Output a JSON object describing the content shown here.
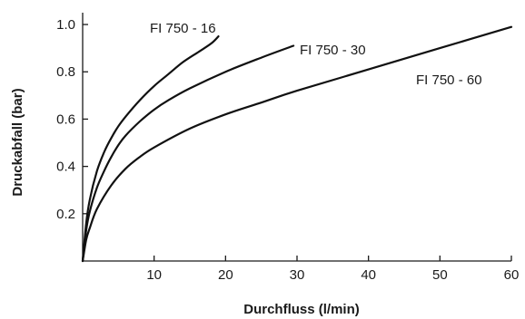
{
  "chart_data": {
    "type": "line",
    "title": "",
    "xlabel": "Durchfluss (l/min)",
    "ylabel": "Druckabfall (bar)",
    "xlim": [
      0,
      60
    ],
    "ylim": [
      0,
      1.05
    ],
    "xticks": [
      10,
      20,
      30,
      40,
      50,
      60
    ],
    "yticks": [
      0.2,
      0.4,
      0.6,
      0.8,
      1.0
    ],
    "xtick_labels": [
      "10",
      "20",
      "30",
      "40",
      "50",
      "60"
    ],
    "ytick_labels": [
      "0.2",
      "0.4",
      "0.6",
      "0.8",
      "1.0"
    ],
    "grid": false,
    "legend": "none",
    "series": [
      {
        "name": "FI 750 - 16",
        "x": [
          0,
          0.5,
          1,
          2,
          3,
          4,
          5,
          6,
          8,
          10,
          12,
          14,
          16,
          18,
          19
        ],
        "y": [
          0,
          0.16,
          0.26,
          0.38,
          0.46,
          0.52,
          0.57,
          0.61,
          0.68,
          0.74,
          0.79,
          0.84,
          0.88,
          0.92,
          0.95
        ]
      },
      {
        "name": "FI 750 - 30",
        "x": [
          0,
          0.5,
          1,
          2,
          3,
          4,
          5,
          6,
          8,
          10,
          12,
          15,
          20,
          25,
          29.5
        ],
        "y": [
          0,
          0.13,
          0.21,
          0.31,
          0.38,
          0.44,
          0.49,
          0.53,
          0.59,
          0.64,
          0.68,
          0.73,
          0.8,
          0.86,
          0.91
        ]
      },
      {
        "name": "FI 750 - 60",
        "x": [
          0,
          0.5,
          1,
          2,
          4,
          6,
          8,
          10,
          15,
          20,
          25,
          30,
          40,
          50,
          60
        ],
        "y": [
          0,
          0.09,
          0.14,
          0.22,
          0.32,
          0.39,
          0.44,
          0.48,
          0.56,
          0.62,
          0.67,
          0.72,
          0.81,
          0.9,
          0.99
        ]
      }
    ]
  }
}
